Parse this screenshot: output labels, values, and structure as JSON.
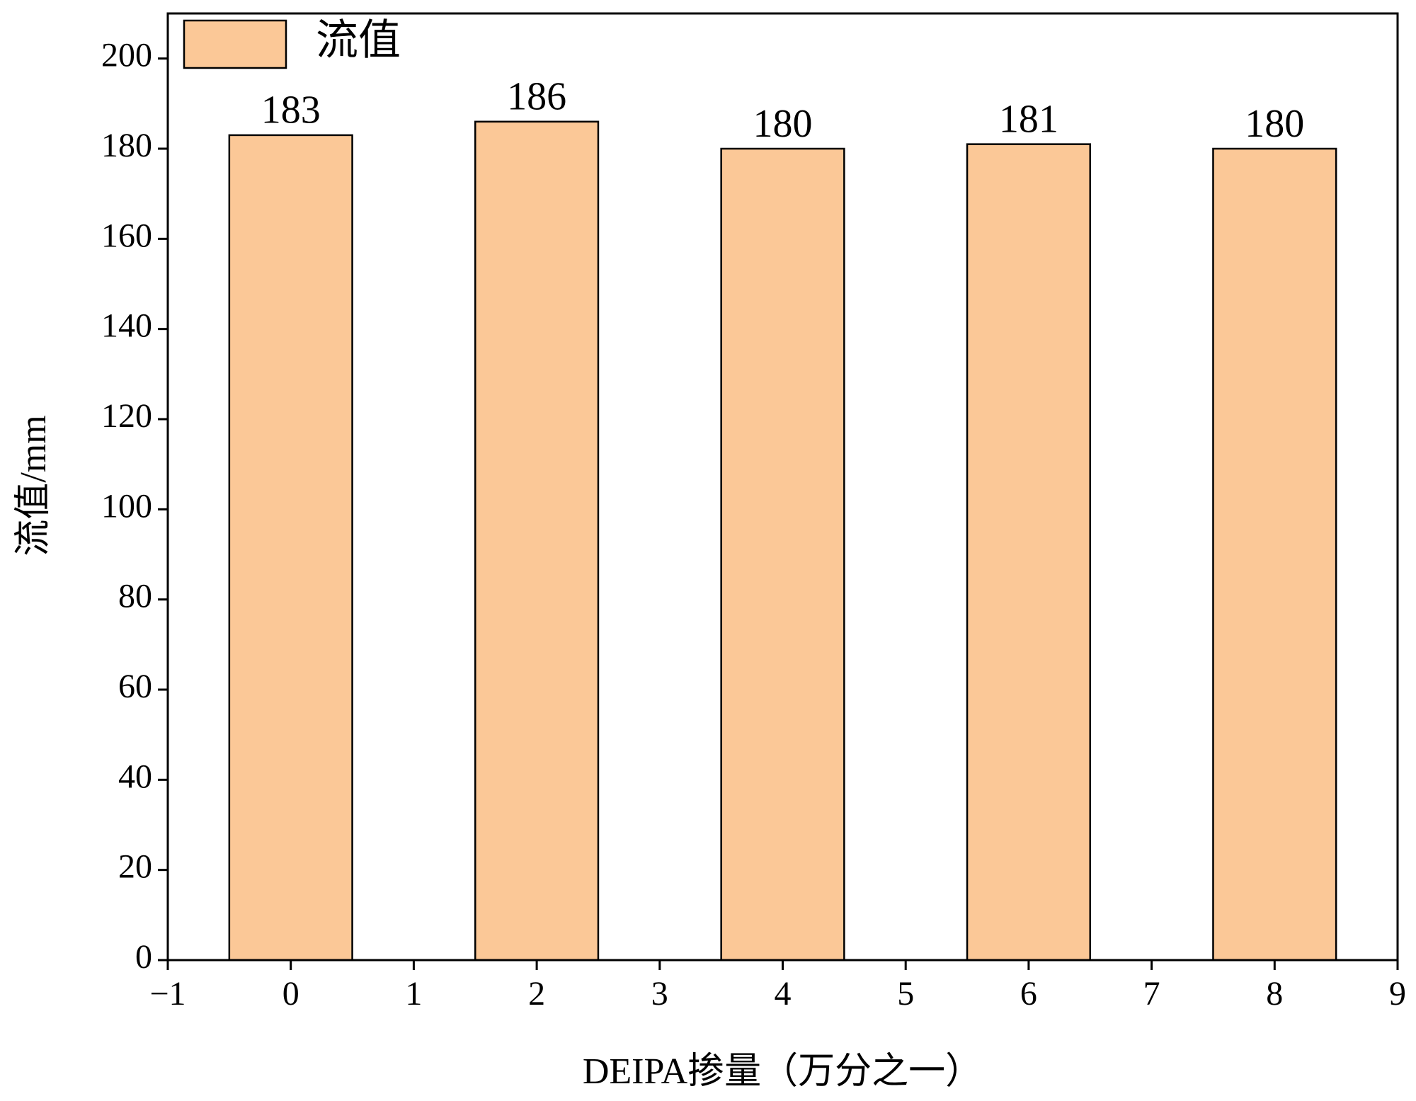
{
  "chart_data": {
    "type": "bar",
    "x_label": "DEIPA掺量（万分之一）",
    "y_label": "流值/mm",
    "x": [
      0,
      2,
      4,
      6,
      8
    ],
    "series": [
      {
        "name": "流值",
        "color": "#fbc897",
        "values": [
          183,
          186,
          180,
          181,
          180
        ]
      }
    ],
    "xlim": [
      -1,
      9
    ],
    "xticks": [
      {
        "value": -1,
        "label": "−1"
      },
      0,
      1,
      2,
      3,
      4,
      5,
      6,
      7,
      8,
      9
    ],
    "ylim": [
      0,
      210
    ],
    "yticks": [
      0,
      20,
      40,
      60,
      80,
      100,
      120,
      140,
      160,
      180,
      200
    ],
    "legend": "top-left"
  }
}
